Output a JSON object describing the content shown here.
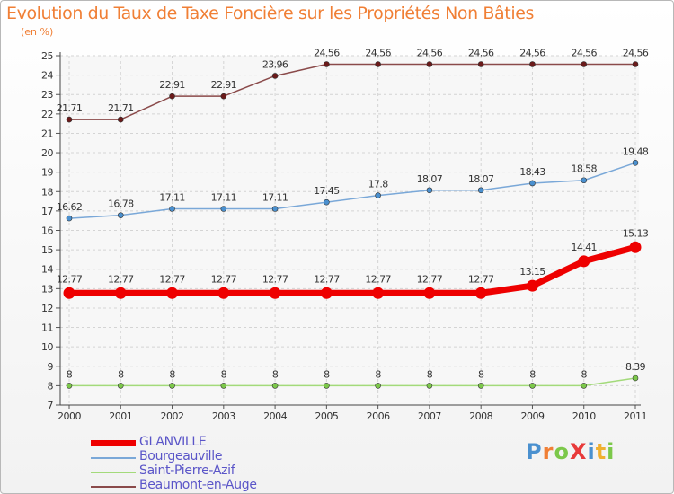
{
  "chart_data": {
    "type": "line",
    "title": "Evolution du Taux de Taxe Foncière sur les Propriétés Non Bâties",
    "ylabel": "(en %)",
    "xlabel": "",
    "x": [
      "2000",
      "2001",
      "2002",
      "2003",
      "2004",
      "2005",
      "2006",
      "2007",
      "2008",
      "2009",
      "2010",
      "2011"
    ],
    "ylim": [
      7,
      25
    ],
    "yticks": [
      7,
      8,
      9,
      10,
      11,
      12,
      13,
      14,
      15,
      16,
      17,
      18,
      19,
      20,
      21,
      22,
      23,
      24,
      25
    ],
    "grid": true,
    "legend_position": "bottom-left",
    "series": [
      {
        "name": "GLANVILLE",
        "color": "#ee0000",
        "marker": "#ee0000",
        "highlight": true,
        "values": [
          12.77,
          12.77,
          12.77,
          12.77,
          12.77,
          12.77,
          12.77,
          12.77,
          12.77,
          13.15,
          14.41,
          15.13
        ],
        "labels": [
          "12.77",
          "12.77",
          "12.77",
          "12.77",
          "12.77",
          "12.77",
          "12.77",
          "12.77",
          "12.77",
          "13.15",
          "14.41",
          "15.13"
        ]
      },
      {
        "name": "Bourgeauville",
        "color": "#7aa8d8",
        "marker": "#4a90cf",
        "highlight": false,
        "values": [
          16.62,
          16.78,
          17.11,
          17.11,
          17.11,
          17.45,
          17.8,
          18.07,
          18.07,
          18.43,
          18.58,
          19.48
        ],
        "labels": [
          "16.62",
          "16.78",
          "17.11",
          "17.11",
          "17.11",
          "17.45",
          "17.8",
          "18.07",
          "18.07",
          "18.43",
          "18.58",
          "19.48"
        ]
      },
      {
        "name": "Saint-Pierre-Azif",
        "color": "#a3da7a",
        "marker": "#7cc84a",
        "highlight": false,
        "values": [
          8,
          8,
          8,
          8,
          8,
          8,
          8,
          8,
          8,
          8,
          8,
          8.39
        ],
        "labels": [
          "8",
          "8",
          "8",
          "8",
          "8",
          "8",
          "8",
          "8",
          "8",
          "8",
          "8",
          "8.39"
        ]
      },
      {
        "name": "Beaumont-en-Auge",
        "color": "#8a4a4a",
        "marker": "#6b1a1a",
        "highlight": false,
        "values": [
          21.71,
          21.71,
          22.91,
          22.91,
          23.96,
          24.56,
          24.56,
          24.56,
          24.56,
          24.56,
          24.56,
          24.56
        ],
        "labels": [
          "21.71",
          "21.71",
          "22.91",
          "22.91",
          "23.96",
          "24.56",
          "24.56",
          "24.56",
          "24.56",
          "24.56",
          "24.56",
          "24.56"
        ]
      }
    ]
  },
  "logo": {
    "text": "ProXiti",
    "letters": [
      "P",
      "r",
      "o",
      "X",
      "i",
      "t",
      "i"
    ],
    "colors": [
      "#4a90cf",
      "#f07f35",
      "#7cc84a",
      "#e83a3a",
      "#4a90cf",
      "#f0b030",
      "#7cc84a"
    ]
  }
}
